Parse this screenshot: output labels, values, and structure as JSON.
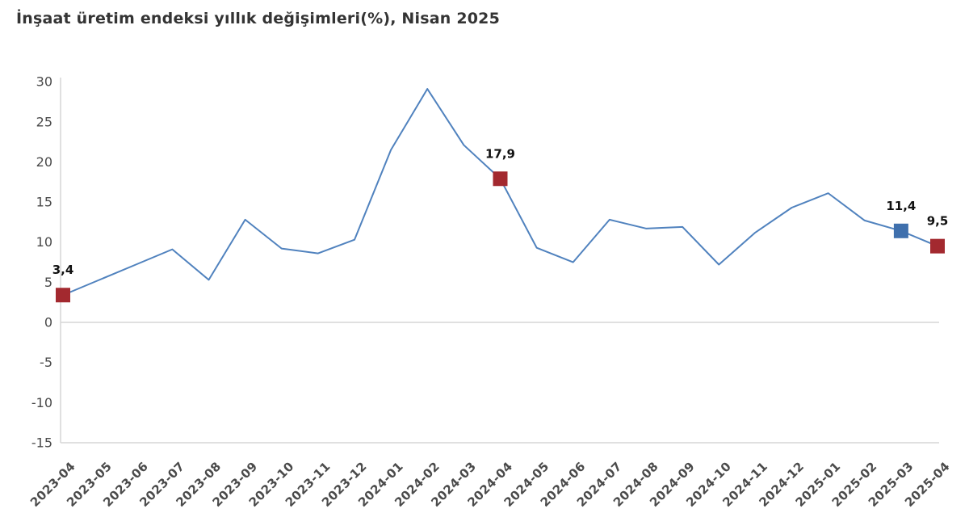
{
  "title": "İnşaat üretim endeksi yıllık değişimleri(%), Nisan 2025",
  "chart_data": {
    "type": "line",
    "x": [
      "2023-04",
      "2023-05",
      "2023-06",
      "2023-07",
      "2023-08",
      "2023-09",
      "2023-10",
      "2023-11",
      "2023-12",
      "2024-01",
      "2024-02",
      "2024-03",
      "2024-04",
      "2024-05",
      "2024-06",
      "2024-07",
      "2024-08",
      "2024-09",
      "2024-10",
      "2024-11",
      "2024-12",
      "2025-01",
      "2025-02",
      "2025-03",
      "2025-04"
    ],
    "values": [
      3.4,
      5.3,
      7.2,
      9.1,
      5.3,
      12.8,
      9.2,
      8.6,
      10.3,
      21.5,
      29.1,
      22.1,
      17.9,
      9.3,
      7.5,
      12.8,
      11.7,
      11.9,
      7.2,
      11.2,
      14.3,
      16.1,
      12.7,
      11.4,
      9.5
    ],
    "highlighted_points": [
      {
        "x": "2023-04",
        "index": 0,
        "value": 3.4,
        "label": "3,4",
        "marker_color": "#a3292f"
      },
      {
        "x": "2024-04",
        "index": 12,
        "value": 17.9,
        "label": "17,9",
        "marker_color": "#a3292f"
      },
      {
        "x": "2025-03",
        "index": 23,
        "value": 11.4,
        "label": "11,4",
        "marker_color": "#3f70ad"
      },
      {
        "x": "2025-04",
        "index": 24,
        "value": 9.5,
        "label": "9,5",
        "marker_color": "#a3292f"
      }
    ],
    "title": "İnşaat üretim endeksi yıllık değişimleri(%), Nisan 2025",
    "xlabel": "",
    "ylabel": "",
    "ylim": [
      -15,
      30
    ],
    "yticks": [
      "30",
      "25",
      "20",
      "15",
      "10",
      "5",
      "0",
      "-5",
      "-10",
      "-15"
    ],
    "ytick_values": [
      30,
      25,
      20,
      15,
      10,
      5,
      0,
      -5,
      -10,
      -15
    ],
    "grid": "zero line only",
    "legend": "none",
    "line_color": "#5082be",
    "axis_color": "#d6d6d6"
  }
}
